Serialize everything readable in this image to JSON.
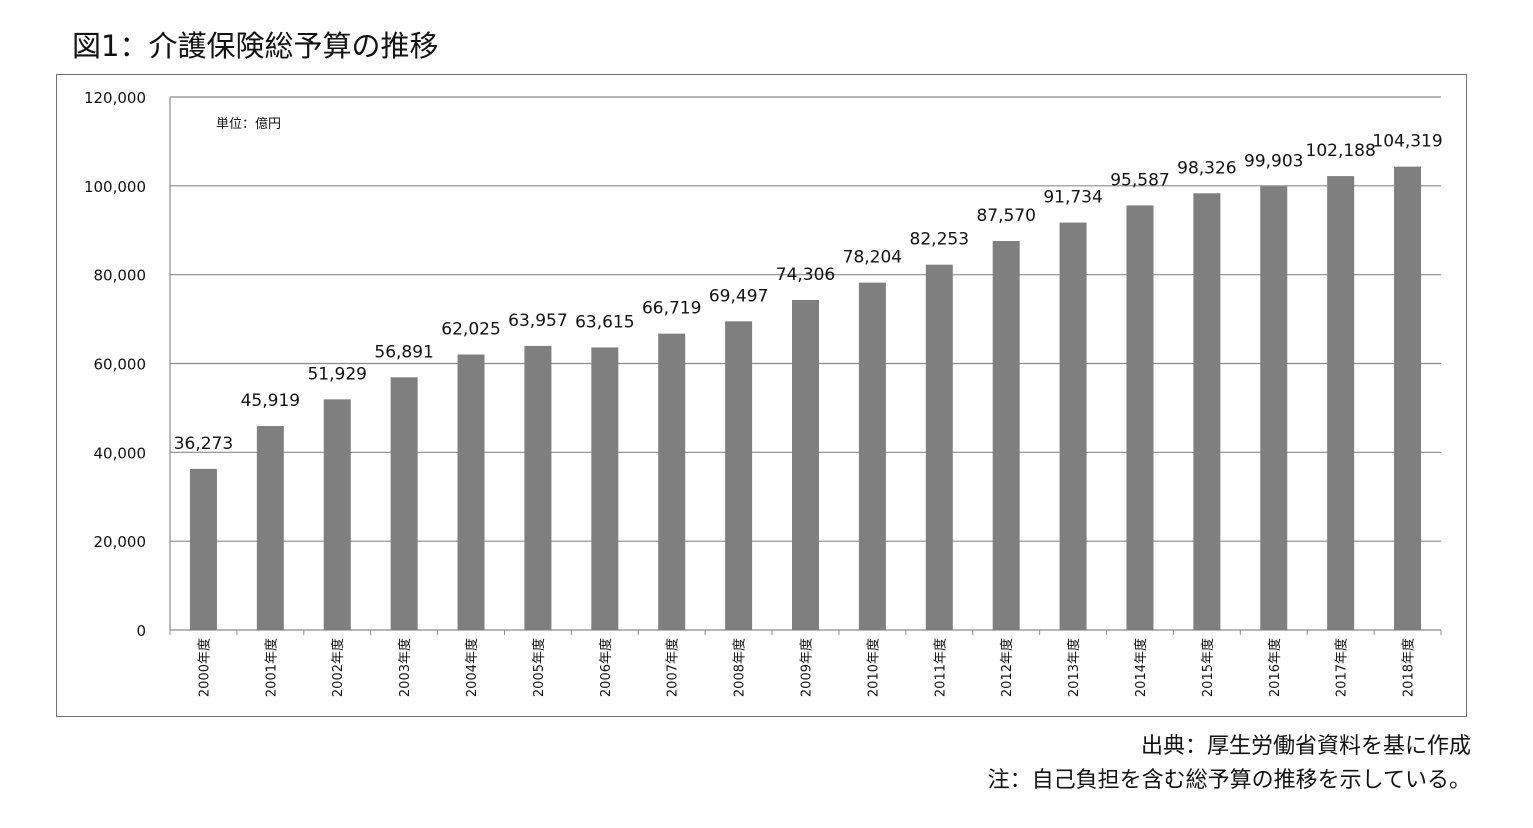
{
  "title": "図1：介護保険総予算の推移",
  "notes": {
    "source": "出典：厚生労働省資料を基に作成",
    "note": "注：自己負担を含む総予算の推移を示している。"
  },
  "colors": {
    "bar": "#7f7f7f",
    "grid": "#8c8c8c",
    "text": "#111111"
  },
  "chart_data": {
    "type": "bar",
    "unit_label": "単位：億円",
    "ylim": [
      0,
      120000
    ],
    "yticks": [
      "0",
      "20,000",
      "40,000",
      "60,000",
      "80,000",
      "100,000",
      "120,000"
    ],
    "ytick_values": [
      0,
      20000,
      40000,
      60000,
      80000,
      100000,
      120000
    ],
    "grid": true,
    "categories": [
      "2000年度",
      "2001年度",
      "2002年度",
      "2003年度",
      "2004年度",
      "2005年度",
      "2006年度",
      "2007年度",
      "2008年度",
      "2009年度",
      "2010年度",
      "2011年度",
      "2012年度",
      "2013年度",
      "2014年度",
      "2015年度",
      "2016年度",
      "2017年度",
      "2018年度"
    ],
    "values": [
      36273,
      45919,
      51929,
      56891,
      62025,
      63957,
      63615,
      66719,
      69497,
      74306,
      78204,
      82253,
      87570,
      91734,
      95587,
      98326,
      99903,
      102188,
      104319
    ],
    "value_labels": [
      "36,273",
      "45,919",
      "51,929",
      "56,891",
      "62,025",
      "63,957",
      "63,615",
      "66,719",
      "69,497",
      "74,306",
      "78,204",
      "82,253",
      "87,570",
      "91,734",
      "95,587",
      "98,326",
      "99,903",
      "102,188",
      "104,319"
    ]
  }
}
